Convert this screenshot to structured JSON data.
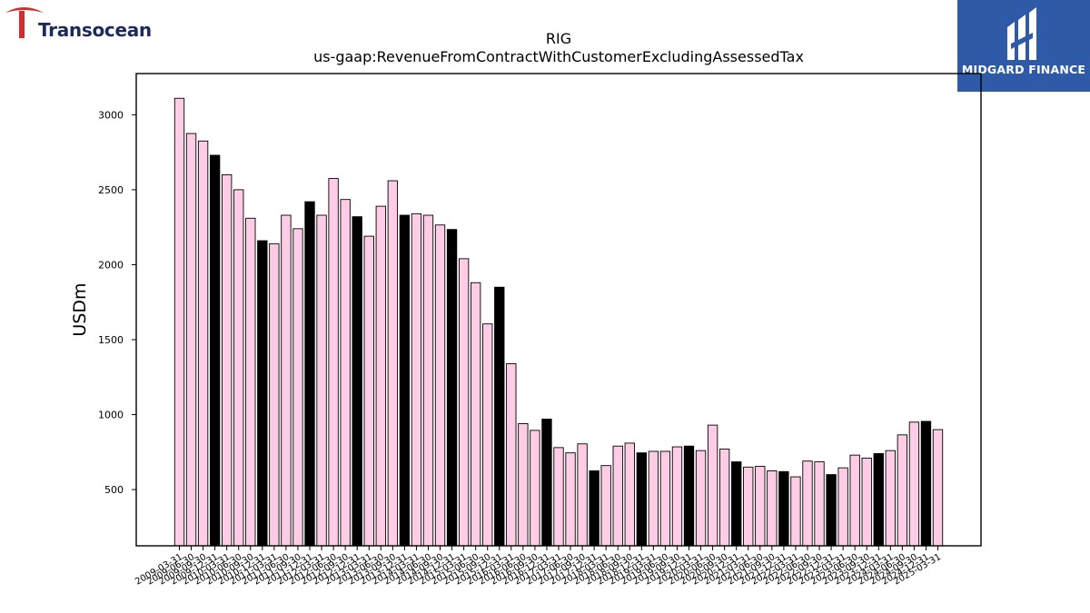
{
  "header": {
    "left_logo_text": "Transocean",
    "right_logo_text": "MIDGARD FINANCE"
  },
  "chart_data": {
    "type": "bar",
    "title": "RIG",
    "subtitle": "us-gaap:RevenueFromContractWithCustomerExcludingAssessedTax",
    "ylabel": "USDm",
    "xlabel": "",
    "ylim": [
      125,
      3275
    ],
    "yticks": [
      500,
      1000,
      1500,
      2000,
      2500,
      3000
    ],
    "grid": false,
    "colors": {
      "default": "#ffcce6",
      "highlight": "#000000",
      "edge": "#000000"
    },
    "categories": [
      "2009-03-31",
      "2009-06-30",
      "2009-09-30",
      "2009-12-31",
      "2010-03-31",
      "2010-06-30",
      "2010-09-30",
      "2010-12-31",
      "2011-03-31",
      "2011-06-30",
      "2011-09-30",
      "2011-12-31",
      "2012-03-31",
      "2012-06-30",
      "2012-09-30",
      "2012-12-31",
      "2013-03-31",
      "2013-06-30",
      "2013-09-30",
      "2013-12-31",
      "2014-03-31",
      "2014-06-30",
      "2014-09-30",
      "2014-12-31",
      "2015-03-31",
      "2015-06-30",
      "2015-09-30",
      "2015-12-31",
      "2016-03-31",
      "2016-06-30",
      "2016-09-30",
      "2016-12-31",
      "2017-03-31",
      "2017-06-30",
      "2017-09-30",
      "2017-12-31",
      "2018-03-31",
      "2018-06-30",
      "2018-09-30",
      "2018-12-31",
      "2019-03-31",
      "2019-06-30",
      "2019-09-30",
      "2019-12-31",
      "2020-03-31",
      "2020-06-30",
      "2020-09-30",
      "2020-12-31",
      "2021-03-31",
      "2021-06-30",
      "2021-09-30",
      "2021-12-31",
      "2022-03-31",
      "2022-06-30",
      "2022-09-30",
      "2022-12-31",
      "2023-03-31",
      "2023-06-30",
      "2023-09-30",
      "2023-12-31",
      "2024-03-31",
      "2024-06-30",
      "2024-09-30",
      "2024-12-31",
      "2025-03-31"
    ],
    "values": [
      3110,
      2875,
      2825,
      2730,
      2600,
      2500,
      2310,
      2160,
      2140,
      2330,
      2240,
      2420,
      2330,
      2575,
      2435,
      2320,
      2190,
      2390,
      2560,
      2330,
      2340,
      2330,
      2265,
      2235,
      2040,
      1880,
      1605,
      1850,
      1340,
      940,
      895,
      970,
      780,
      745,
      805,
      625,
      660,
      790,
      810,
      745,
      755,
      755,
      785,
      790,
      760,
      930,
      770,
      685,
      650,
      655,
      625,
      620,
      585,
      690,
      685,
      600,
      645,
      730,
      710,
      740,
      760,
      865,
      950,
      955,
      900
    ],
    "highlight": [
      0,
      0,
      0,
      1,
      0,
      0,
      0,
      1,
      0,
      0,
      0,
      1,
      0,
      0,
      0,
      1,
      0,
      0,
      0,
      1,
      0,
      0,
      0,
      1,
      0,
      0,
      0,
      1,
      0,
      0,
      0,
      1,
      0,
      0,
      0,
      1,
      0,
      0,
      0,
      1,
      0,
      0,
      0,
      1,
      0,
      0,
      0,
      1,
      0,
      0,
      0,
      1,
      0,
      0,
      0,
      1,
      0,
      0,
      0,
      1,
      0,
      0,
      0,
      1,
      0
    ]
  }
}
